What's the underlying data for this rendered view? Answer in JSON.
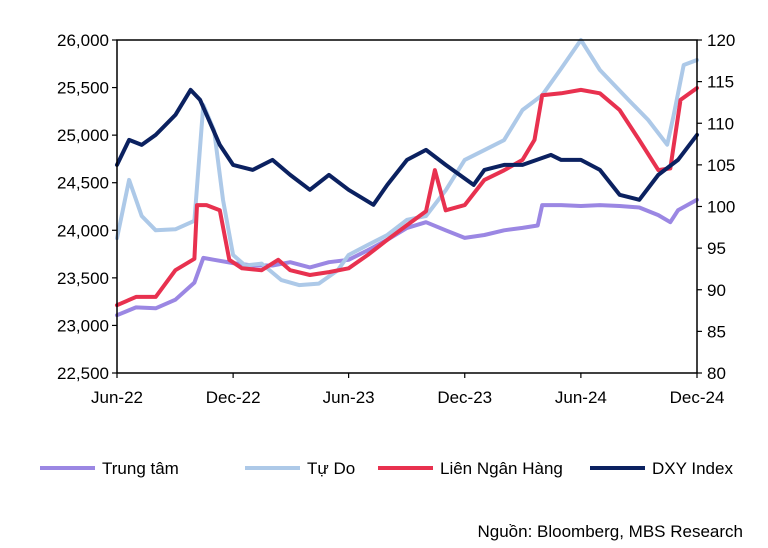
{
  "chart_data": {
    "type": "line",
    "title": "",
    "xlabel": "",
    "ylabel": "",
    "x_ticks": [
      "Jun-22",
      "Dec-22",
      "Jun-23",
      "Dec-23",
      "Jun-24",
      "Dec-24"
    ],
    "x_tick_dates": [
      "2022-06-01",
      "2022-12-01",
      "2023-06-01",
      "2023-12-01",
      "2024-06-01",
      "2024-12-01"
    ],
    "xlim": [
      "2022-06-01",
      "2024-12-01"
    ],
    "ylim_left": [
      22500,
      26000
    ],
    "yticks_left": [
      "22,500",
      "23,000",
      "23,500",
      "24,000",
      "24,500",
      "25,000",
      "25,500",
      "26,000"
    ],
    "ylim_right": [
      80,
      120
    ],
    "yticks_right": [
      "80",
      "85",
      "90",
      "95",
      "100",
      "105",
      "110",
      "115",
      "120"
    ],
    "grid": false,
    "legend_position": "bottom",
    "series": [
      {
        "name": "Trung tâm",
        "axis": "left",
        "color": "#9B87E3",
        "x": [
          "2022-06-01",
          "2022-07-01",
          "2022-08-01",
          "2022-09-01",
          "2022-10-01",
          "2022-10-15",
          "2022-11-01",
          "2022-12-01",
          "2023-01-01",
          "2023-02-01",
          "2023-03-01",
          "2023-04-01",
          "2023-05-01",
          "2023-06-01",
          "2023-07-01",
          "2023-08-01",
          "2023-09-01",
          "2023-10-01",
          "2023-11-01",
          "2023-12-01",
          "2024-01-01",
          "2024-02-01",
          "2024-03-01",
          "2024-03-25",
          "2024-04-01",
          "2024-05-01",
          "2024-06-01",
          "2024-07-01",
          "2024-08-01",
          "2024-09-01",
          "2024-10-01",
          "2024-10-20",
          "2024-11-01",
          "2024-12-01"
        ],
        "y": [
          23108,
          23190,
          23180,
          23270,
          23450,
          23710,
          23690,
          23655,
          23630,
          23630,
          23665,
          23610,
          23665,
          23690,
          23790,
          23900,
          24025,
          24085,
          24000,
          23920,
          23950,
          24000,
          24025,
          24050,
          24265,
          24265,
          24255,
          24265,
          24255,
          24240,
          24160,
          24085,
          24210,
          24320
        ]
      },
      {
        "name": "Tự Do",
        "axis": "left",
        "color": "#ADC9E8",
        "x": [
          "2022-06-01",
          "2022-06-20",
          "2022-07-10",
          "2022-08-01",
          "2022-09-01",
          "2022-10-01",
          "2022-10-15",
          "2022-11-01",
          "2022-11-15",
          "2022-12-01",
          "2022-12-20",
          "2023-01-15",
          "2023-02-15",
          "2023-03-15",
          "2023-04-15",
          "2023-05-15",
          "2023-06-01",
          "2023-07-01",
          "2023-08-01",
          "2023-09-01",
          "2023-10-01",
          "2023-11-01",
          "2023-12-01",
          "2024-01-01",
          "2024-02-01",
          "2024-03-01",
          "2024-04-01",
          "2024-05-01",
          "2024-06-01",
          "2024-07-01",
          "2024-08-15",
          "2024-09-15",
          "2024-10-15",
          "2024-10-25",
          "2024-11-10",
          "2024-12-01"
        ],
        "y": [
          23918,
          24530,
          24150,
          24000,
          24010,
          24100,
          25317,
          25050,
          24320,
          23740,
          23630,
          23650,
          23476,
          23424,
          23440,
          23580,
          23740,
          23845,
          23950,
          24110,
          24150,
          24420,
          24740,
          24843,
          24948,
          25264,
          25420,
          25700,
          26000,
          25685,
          25370,
          25160,
          24900,
          25200,
          25737,
          25790
        ]
      },
      {
        "name": "Liên Ngân Hàng",
        "axis": "left",
        "color": "#E8314F",
        "x": [
          "2022-06-01",
          "2022-07-01",
          "2022-08-01",
          "2022-09-01",
          "2022-10-01",
          "2022-10-05",
          "2022-10-20",
          "2022-11-10",
          "2022-11-25",
          "2022-12-15",
          "2023-01-15",
          "2023-02-10",
          "2023-03-01",
          "2023-04-01",
          "2023-05-01",
          "2023-06-01",
          "2023-07-01",
          "2023-08-01",
          "2023-09-01",
          "2023-10-01",
          "2023-10-15",
          "2023-11-01",
          "2023-12-01",
          "2024-01-01",
          "2024-02-01",
          "2024-03-01",
          "2024-03-20",
          "2024-04-01",
          "2024-05-01",
          "2024-06-01",
          "2024-07-01",
          "2024-08-01",
          "2024-09-01",
          "2024-10-01",
          "2024-10-20",
          "2024-11-05",
          "2024-12-01"
        ],
        "y": [
          23213,
          23300,
          23300,
          23580,
          23700,
          24265,
          24265,
          24210,
          23690,
          23600,
          23580,
          23690,
          23580,
          23530,
          23560,
          23600,
          23740,
          23900,
          24055,
          24200,
          24633,
          24210,
          24265,
          24530,
          24630,
          24740,
          24950,
          25420,
          25440,
          25475,
          25440,
          25264,
          24948,
          24633,
          24650,
          25370,
          25495
        ]
      },
      {
        "name": "DXY Index",
        "axis": "right",
        "color": "#0B2160",
        "x": [
          "2022-06-01",
          "2022-06-20",
          "2022-07-10",
          "2022-08-01",
          "2022-09-01",
          "2022-09-25",
          "2022-10-10",
          "2022-11-10",
          "2022-12-01",
          "2023-01-01",
          "2023-02-01",
          "2023-03-01",
          "2023-04-01",
          "2023-05-01",
          "2023-06-01",
          "2023-07-10",
          "2023-08-01",
          "2023-09-01",
          "2023-10-01",
          "2023-11-01",
          "2023-12-15",
          "2024-01-01",
          "2024-02-01",
          "2024-03-01",
          "2024-04-15",
          "2024-05-01",
          "2024-06-01",
          "2024-07-01",
          "2024-08-01",
          "2024-09-01",
          "2024-10-01",
          "2024-11-01",
          "2024-12-01"
        ],
        "y": [
          105.0,
          108.0,
          107.4,
          108.6,
          111.0,
          114.0,
          112.8,
          107.4,
          105.0,
          104.4,
          105.6,
          103.8,
          102.0,
          103.8,
          102.0,
          100.2,
          102.6,
          105.6,
          106.8,
          105.0,
          102.6,
          104.4,
          105.0,
          105.0,
          106.2,
          105.6,
          105.6,
          104.4,
          101.4,
          100.8,
          103.8,
          105.6,
          108.6
        ]
      }
    ]
  },
  "source": "Nguồn: Bloomberg, MBS Research"
}
